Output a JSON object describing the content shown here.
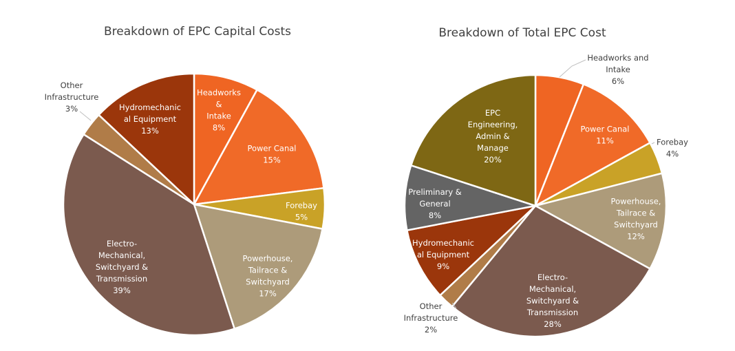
{
  "chart_data": [
    {
      "type": "pie",
      "title": "Breakdown of EPC Capital Costs",
      "slices": [
        {
          "label": "Headworks & Intake",
          "value": 8,
          "display": "Headworks\n&\nIntake\n8%",
          "color": "#ef6523",
          "text_color": "#ffffff"
        },
        {
          "label": "Power Canal",
          "value": 15,
          "display": "Power Canal\n15%",
          "color": "#f06a28",
          "text_color": "#ffffff"
        },
        {
          "label": "Forebay",
          "value": 5,
          "display": "Forebay\n5%",
          "color": "#c9a227",
          "text_color": "#ffffff"
        },
        {
          "label": "Powerhouse, Tailrace & Switchyard",
          "value": 17,
          "display": "Powerhouse,\nTailrace &\nSwitchyard\n17%",
          "color": "#ad9b7a",
          "text_color": "#ffffff"
        },
        {
          "label": "Electro-Mechanical, Switchyard & Transmission",
          "value": 39,
          "display": "Electro-\nMechanical,\nSwitchyard &\nTransmission\n39%",
          "color": "#7b5a4e",
          "text_color": "#ffffff"
        },
        {
          "label": "Other Infrastructure",
          "value": 3,
          "display": "Other\nInfrastructure\n3%",
          "color": "#b07c48",
          "text_color": "#404040",
          "outside": true
        },
        {
          "label": "Hydromechanical Equipment",
          "value": 13,
          "display": "Hydromechanic\nal Equipment\n13%",
          "color": "#9b360b",
          "text_color": "#ffffff"
        }
      ]
    },
    {
      "type": "pie",
      "title": "Breakdown of Total EPC Cost",
      "slices": [
        {
          "label": "Headworks and Intake",
          "value": 6,
          "display": "Headworks and\nIntake\n6%",
          "color": "#ef6523",
          "text_color": "#404040",
          "outside": true
        },
        {
          "label": "Power Canal",
          "value": 11,
          "display": "Power Canal\n11%",
          "color": "#f06a28",
          "text_color": "#ffffff"
        },
        {
          "label": "Forebay",
          "value": 4,
          "display": "Forebay\n4%",
          "color": "#c9a227",
          "text_color": "#404040",
          "outside": true
        },
        {
          "label": "Powerhouse, Tailrace & Switchyard",
          "value": 12,
          "display": "Powerhouse,\nTailrace &\nSwitchyard\n12%",
          "color": "#ad9b7a",
          "text_color": "#ffffff"
        },
        {
          "label": "Electro-Mechanical, Switchyard & Transmission",
          "value": 28,
          "display": "Electro-\nMechanical,\nSwitchyard &\nTransmission\n28%",
          "color": "#7b5a4e",
          "text_color": "#ffffff"
        },
        {
          "label": "Other Infrastructure",
          "value": 2,
          "display": "Other\nInfrastructure\n2%",
          "color": "#b07c48",
          "text_color": "#404040",
          "outside": true
        },
        {
          "label": "Hydromechanical Equipment",
          "value": 9,
          "display": "Hydromechanic\nal Equipment\n9%",
          "color": "#9b360b",
          "text_color": "#ffffff"
        },
        {
          "label": "Preliminary & General",
          "value": 8,
          "display": "Preliminary &\nGeneral\n8%",
          "color": "#646464",
          "text_color": "#ffffff"
        },
        {
          "label": "EPC Engineering, Admin & Manage",
          "value": 20,
          "display": "EPC\nEngineering,\nAdmin &\nManage\n20%",
          "color": "#7e6714",
          "text_color": "#ffffff"
        }
      ]
    }
  ]
}
